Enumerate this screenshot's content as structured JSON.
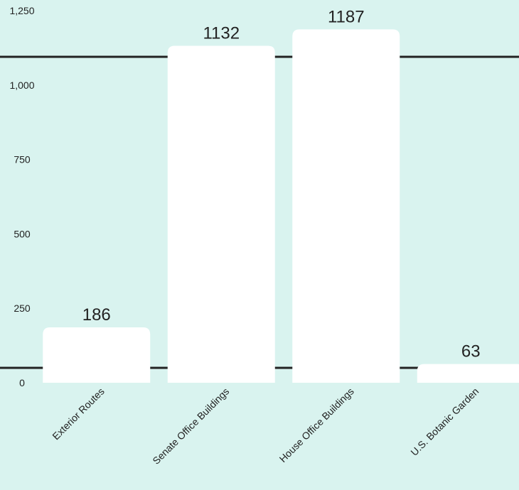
{
  "chart_data": {
    "type": "bar",
    "title": "",
    "xlabel": "",
    "ylabel": "",
    "categories": [
      "Exterior Routes",
      "Senate Office Buildings",
      "House Office Buildings",
      "U.S. Botanic Garden"
    ],
    "values": [
      186,
      1132,
      1187,
      63
    ],
    "data_labels": [
      "186",
      "1132",
      "1187",
      "63"
    ],
    "ylim": [
      0,
      1250
    ],
    "y_ticks": [
      0,
      250,
      500,
      750,
      1000,
      1250
    ],
    "y_tick_labels": [
      "0",
      "250",
      "500",
      "750",
      "1,000",
      "1,250"
    ],
    "reference_lines": [
      50,
      1095
    ],
    "grid": false,
    "legend": "none",
    "colors": {
      "background": "#d9f3ef",
      "bar": "#ffffff",
      "reference_line": "#222222",
      "text": "#222222"
    }
  }
}
